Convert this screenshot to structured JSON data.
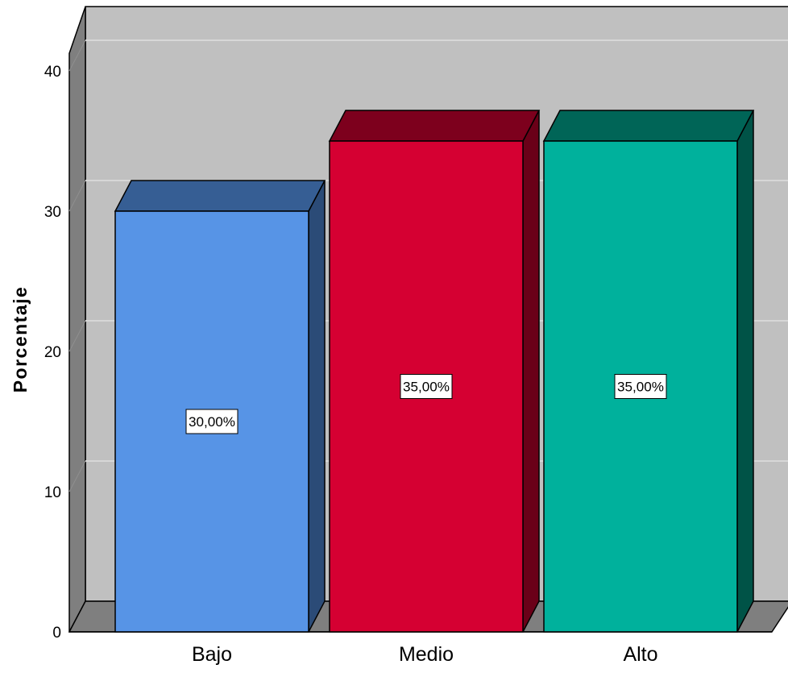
{
  "chart_data": {
    "type": "bar",
    "title": "",
    "xlabel": "",
    "ylabel": "Porcentaje",
    "ylim": [
      0,
      40
    ],
    "yticks": [
      0,
      10,
      20,
      30,
      40
    ],
    "categories": [
      "Bajo",
      "Medio",
      "Alto"
    ],
    "values": [
      30,
      35,
      35
    ],
    "data_labels": [
      "30,00%",
      "35,00%",
      "35,00%"
    ],
    "colors": {
      "bars": [
        "#5794e6",
        "#d50032",
        "#00b19c"
      ],
      "bar_tops": [
        "#365e94",
        "#7d001d",
        "#006557"
      ],
      "bar_sides": [
        "#2b4b77",
        "#6a0018",
        "#005347"
      ],
      "plot_back_wall": "#c0c0c0",
      "plot_side_wall": "#7f7f7f",
      "plot_floor": "#7f7f7f",
      "gridline": "#d7d7d7"
    },
    "grid": true,
    "legend": "none",
    "style": "3d"
  }
}
